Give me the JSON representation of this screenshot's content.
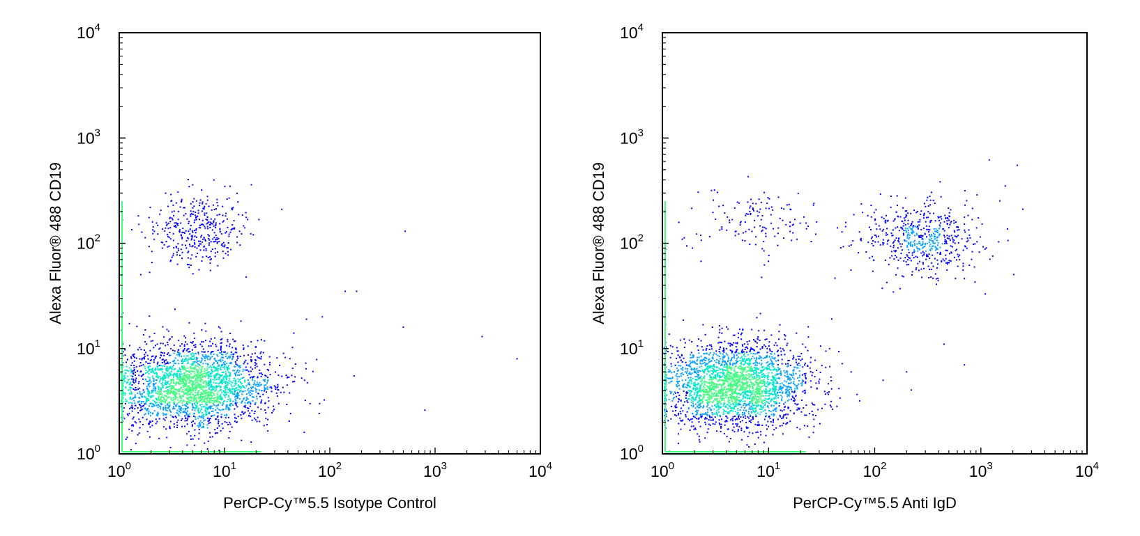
{
  "chart_data": [
    {
      "type": "scatter",
      "title": "",
      "xlabel": "PerCP-Cy™5.5 Isotype Control",
      "ylabel": "Alexa Fluor® 488 CD19",
      "x_scale": "log",
      "y_scale": "log",
      "xlim": [
        1,
        10000
      ],
      "ylim": [
        1,
        10000
      ],
      "x_ticks": [
        {
          "value": 1,
          "base": "10",
          "exp": "0"
        },
        {
          "value": 10,
          "base": "10",
          "exp": "1"
        },
        {
          "value": 100,
          "base": "10",
          "exp": "2"
        },
        {
          "value": 1000,
          "base": "10",
          "exp": "3"
        },
        {
          "value": 10000,
          "base": "10",
          "exp": "4"
        }
      ],
      "y_ticks": [
        {
          "value": 1,
          "base": "10",
          "exp": "0"
        },
        {
          "value": 10,
          "base": "10",
          "exp": "1"
        },
        {
          "value": 100,
          "base": "10",
          "exp": "2"
        },
        {
          "value": 1000,
          "base": "10",
          "exp": "3"
        },
        {
          "value": 10000,
          "base": "10",
          "exp": "4"
        }
      ],
      "grid": false,
      "density_colors": [
        "#0000ff",
        "#00a0ff",
        "#00e8c8",
        "#40ff80"
      ],
      "populations": [
        {
          "center": [
            5,
            4.5
          ],
          "spread": [
            0.38,
            0.2
          ],
          "count": 2600
        },
        {
          "center": [
            5.5,
            130
          ],
          "spread": [
            0.22,
            0.17
          ],
          "count": 380
        }
      ],
      "outliers": [
        [
          18,
          360
        ],
        [
          35,
          210
        ],
        [
          520,
          130
        ],
        [
          180,
          35
        ],
        [
          140,
          35
        ],
        [
          500,
          16
        ],
        [
          2800,
          13
        ],
        [
          6000,
          8
        ],
        [
          170,
          5.5
        ],
        [
          800,
          2.6
        ],
        [
          65,
          3
        ],
        [
          85,
          20
        ],
        [
          60,
          19
        ]
      ]
    },
    {
      "type": "scatter",
      "title": "",
      "xlabel": "PerCP-Cy™5.5 Anti IgD",
      "ylabel": "Alexa Fluor® 488 CD19",
      "x_scale": "log",
      "y_scale": "log",
      "xlim": [
        1,
        10000
      ],
      "ylim": [
        1,
        10000
      ],
      "x_ticks": [
        {
          "value": 1,
          "base": "10",
          "exp": "0"
        },
        {
          "value": 10,
          "base": "10",
          "exp": "1"
        },
        {
          "value": 100,
          "base": "10",
          "exp": "2"
        },
        {
          "value": 1000,
          "base": "10",
          "exp": "3"
        },
        {
          "value": 10000,
          "base": "10",
          "exp": "4"
        }
      ],
      "y_ticks": [
        {
          "value": 1,
          "base": "10",
          "exp": "0"
        },
        {
          "value": 10,
          "base": "10",
          "exp": "1"
        },
        {
          "value": 100,
          "base": "10",
          "exp": "2"
        },
        {
          "value": 1000,
          "base": "10",
          "exp": "3"
        },
        {
          "value": 10000,
          "base": "10",
          "exp": "4"
        }
      ],
      "grid": false,
      "density_colors": [
        "#0000ff",
        "#00a0ff",
        "#00e8c8",
        "#40ff80"
      ],
      "populations": [
        {
          "center": [
            5,
            4.5
          ],
          "spread": [
            0.36,
            0.2
          ],
          "count": 2600
        },
        {
          "center": [
            280,
            110
          ],
          "spread": [
            0.28,
            0.17
          ],
          "count": 560
        },
        {
          "center": [
            8,
            160
          ],
          "spread": [
            0.35,
            0.16
          ],
          "count": 140
        }
      ],
      "outliers": [
        [
          1200,
          620
        ],
        [
          2200,
          550
        ],
        [
          1700,
          350
        ],
        [
          700,
          7
        ],
        [
          200,
          6
        ],
        [
          60,
          6
        ],
        [
          120,
          5
        ],
        [
          450,
          11
        ],
        [
          1100,
          33
        ]
      ]
    }
  ]
}
